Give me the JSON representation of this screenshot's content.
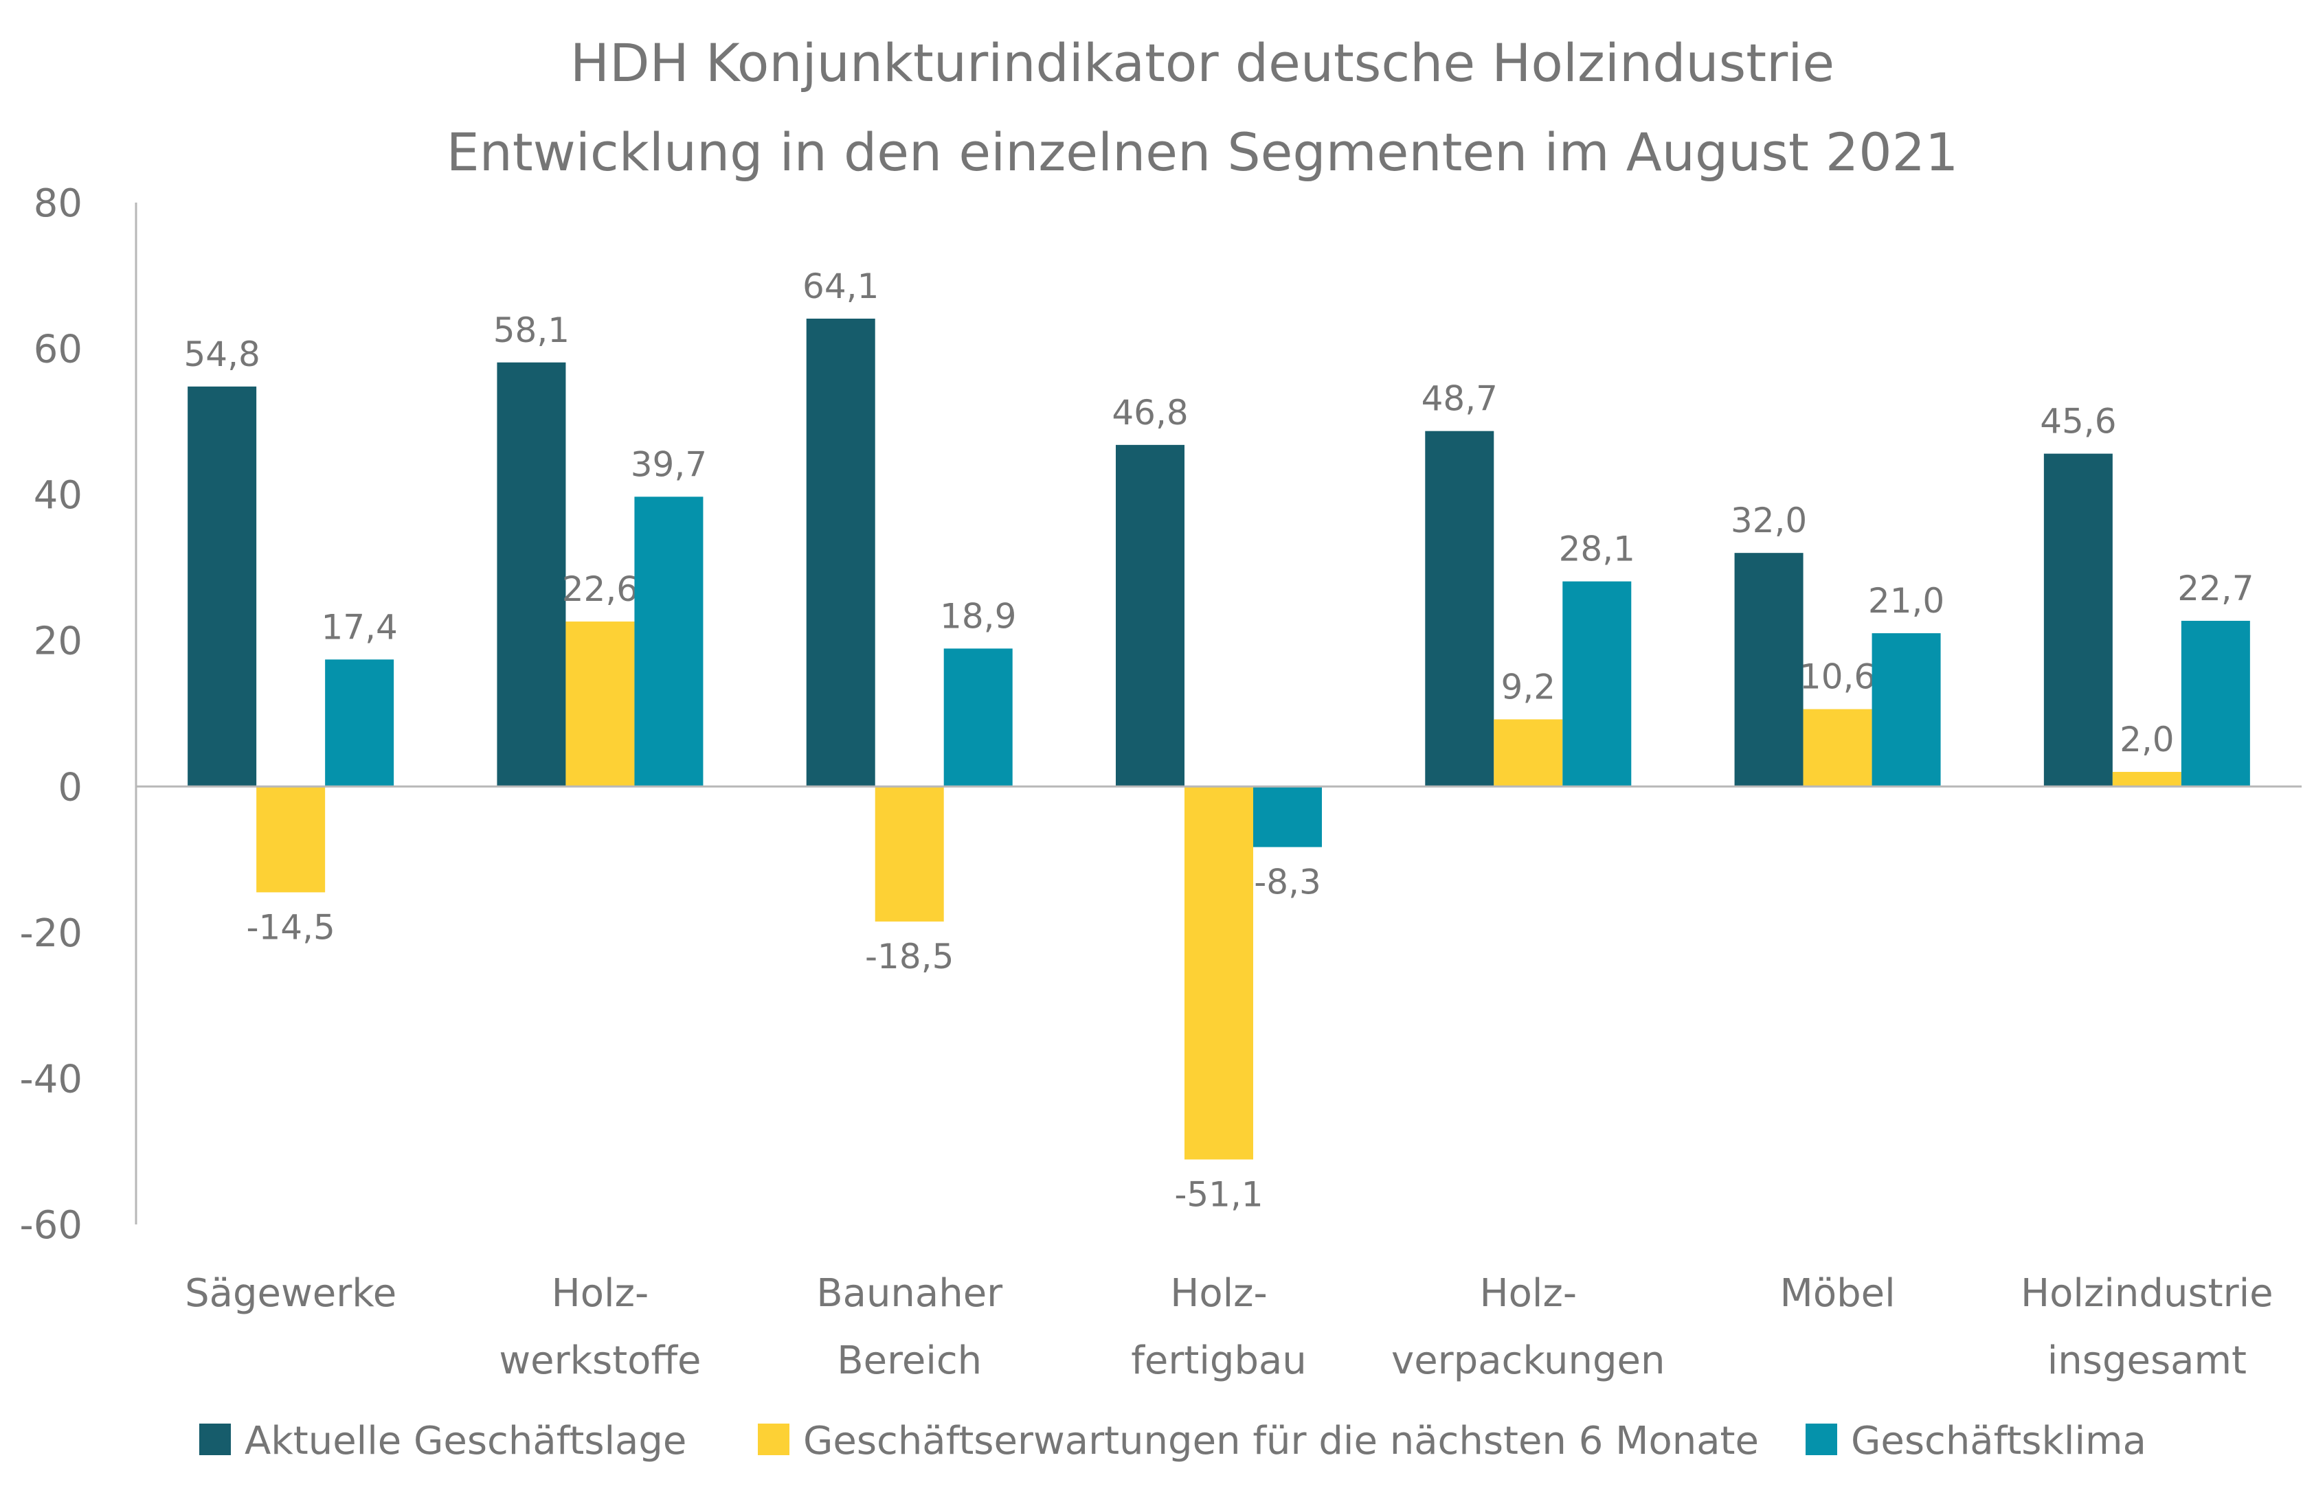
{
  "chart_data": {
    "type": "bar",
    "title": "HDH Konjunkturindikator deutsche Holzindustrie",
    "subtitle": "Entwicklung in den einzelnen Segmenten im August 2021",
    "categories": [
      [
        "Sägewerke"
      ],
      [
        "Holz-",
        "werkstoffe"
      ],
      [
        "Baunaher",
        "Bereich"
      ],
      [
        "Holz-",
        "fertigbau"
      ],
      [
        "Holz-",
        "verpackungen"
      ],
      [
        "Möbel"
      ],
      [
        "Holzindustrie",
        "insgesamt"
      ]
    ],
    "series": [
      {
        "name": "Aktuelle Geschäftslage",
        "color": "#165c6b",
        "values": [
          54.8,
          58.1,
          64.1,
          46.8,
          48.7,
          32.0,
          45.6
        ],
        "labels": [
          "54,8",
          "58,1",
          "64,1",
          "46,8",
          "48,7",
          "32,0",
          "45,6"
        ]
      },
      {
        "name": "Geschäftserwartungen für die nächsten 6 Monate",
        "color": "#fdd135",
        "values": [
          -14.5,
          22.6,
          -18.5,
          -51.1,
          9.2,
          10.6,
          2.0
        ],
        "labels": [
          "-14,5",
          "22,6",
          "-18,5",
          "-51,1",
          "9,2",
          "10,6",
          "2,0"
        ]
      },
      {
        "name": "Geschäftsklima",
        "color": "#0592ab",
        "values": [
          17.4,
          39.7,
          18.9,
          -8.3,
          28.1,
          21.0,
          22.7
        ],
        "labels": [
          "17,4",
          "39,7",
          "18,9",
          "-8,3",
          "28,1",
          "21,0",
          "22,7"
        ]
      }
    ],
    "ylim": [
      -60,
      80
    ],
    "yticks": [
      "80",
      "60",
      "40",
      "20",
      "0",
      "-20",
      "-40",
      "-60"
    ],
    "ytick_values": [
      80,
      60,
      40,
      20,
      0,
      -20,
      -40,
      -60
    ],
    "xlabel": "",
    "ylabel": "",
    "grid": false,
    "legend": "bottom"
  }
}
